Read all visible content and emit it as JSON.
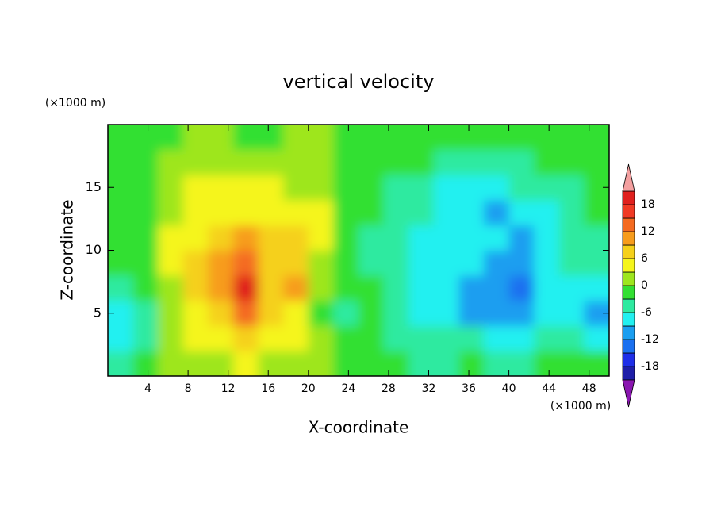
{
  "chart_data": {
    "type": "contour",
    "title": "vertical velocity",
    "xlabel": "X-coordinate",
    "ylabel": "Z-coordinate",
    "x_unit": "(×1000 m)",
    "y_unit": "(×1000 m)",
    "xlim": [
      0,
      50
    ],
    "ylim": [
      0,
      20
    ],
    "xticks": [
      4,
      8,
      12,
      16,
      20,
      24,
      28,
      32,
      36,
      40,
      44,
      48
    ],
    "yticks": [
      5,
      10,
      15
    ],
    "x": [
      1.25,
      3.75,
      6.25,
      8.75,
      11.25,
      13.75,
      16.25,
      18.75,
      21.25,
      23.75,
      26.25,
      28.75,
      31.25,
      33.75,
      36.25,
      38.75,
      41.25,
      43.75,
      46.25,
      48.75
    ],
    "z": [
      1,
      3,
      5,
      7,
      9,
      11,
      13,
      15,
      17,
      19
    ],
    "values": [
      [
        -4,
        -2,
        0,
        1,
        2,
        3,
        2,
        1,
        2,
        -1,
        -1,
        -2,
        -4,
        -4,
        -3,
        -4,
        -4,
        -3,
        -1,
        -2
      ],
      [
        -7,
        -4,
        1,
        4,
        5,
        7,
        5,
        3,
        1,
        -2,
        -2,
        -4,
        -5,
        -6,
        -6,
        -7,
        -7,
        -6,
        -5,
        -7
      ],
      [
        -8,
        -5,
        2,
        5,
        8,
        12,
        6,
        4,
        -2,
        -4,
        -3,
        -5,
        -7,
        -9,
        -10,
        -12,
        -10,
        -8,
        -7,
        -10
      ],
      [
        -5,
        -3,
        2,
        6,
        11,
        19,
        8,
        9,
        0,
        -3,
        -3,
        -6,
        -8,
        -9,
        -11,
        -11,
        -13,
        -9,
        -8,
        -7
      ],
      [
        -3,
        -2,
        3,
        6,
        10,
        14,
        7,
        6,
        2,
        -2,
        -4,
        -6,
        -8,
        -9,
        -9,
        -10,
        -12,
        -8,
        -6,
        -5
      ],
      [
        -2,
        -1,
        3,
        5,
        8,
        9,
        6,
        6,
        3,
        -1,
        -4,
        -5,
        -7,
        -9,
        -8,
        -9,
        -11,
        -7,
        -5,
        -5
      ],
      [
        -1,
        -2,
        2,
        4,
        5,
        5,
        5,
        5,
        3,
        -1,
        -3,
        -5,
        -6,
        -7,
        -8,
        -10,
        -8,
        -7,
        -5,
        -3
      ],
      [
        -2,
        -1,
        2,
        3,
        4,
        3,
        3,
        2,
        1,
        -1,
        -3,
        -4,
        -5,
        -7,
        -7,
        -7,
        -6,
        -5,
        -4,
        -3
      ],
      [
        -1,
        -1,
        1,
        2,
        2,
        1,
        1,
        1,
        0,
        -1,
        -2,
        -3,
        -3,
        -4,
        -5,
        -5,
        -4,
        -3,
        -3,
        -2
      ],
      [
        -1,
        -1,
        -1,
        0,
        0,
        -1,
        -1,
        0,
        0,
        -1,
        -2,
        -2,
        -2,
        -2,
        -2,
        -2,
        -2,
        -2,
        -2,
        -2
      ]
    ],
    "levels": [
      -21,
      -18,
      -15,
      -12,
      -9,
      -6,
      -3,
      0,
      3,
      6,
      9,
      12,
      15,
      18,
      21
    ],
    "colors": [
      "#8a16b0",
      "#1e1ea8",
      "#1e2ee8",
      "#1a70f0",
      "#1a9ef0",
      "#22f0f0",
      "#2eeaa0",
      "#33e033",
      "#9ee61e",
      "#f5f51c",
      "#f5d01a",
      "#f79c1c",
      "#f46a20",
      "#f03a24",
      "#e0201e",
      "#f4a0a0"
    ],
    "colorbar_ticks": [
      18,
      12,
      6,
      0,
      -6,
      -12,
      -18
    ]
  }
}
